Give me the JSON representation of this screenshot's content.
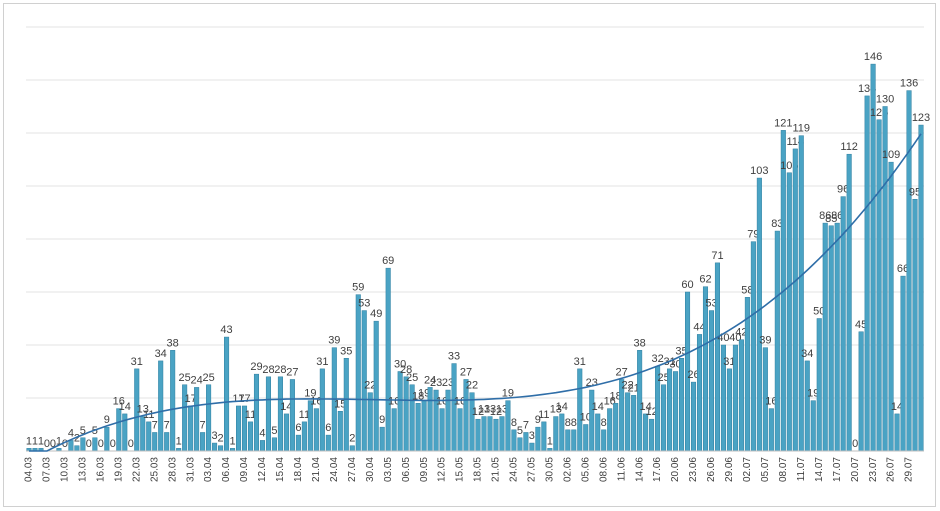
{
  "chart_data": {
    "type": "bar",
    "color": "#4aa3c4",
    "trend_color": "#2f6ea8",
    "grid": true,
    "ylim": [
      0,
      160
    ],
    "yticks": [
      0,
      20,
      40,
      60,
      80,
      100,
      120,
      140,
      160
    ],
    "categories": [
      "04.03",
      null,
      null,
      "07.03",
      null,
      null,
      "10.03",
      null,
      null,
      "13.03",
      null,
      null,
      "16.03",
      null,
      null,
      "19.03",
      null,
      null,
      "22.03",
      null,
      null,
      "25.03",
      null,
      null,
      "28.03",
      null,
      null,
      "31.03",
      null,
      null,
      "03.04",
      null,
      null,
      "06.04",
      null,
      null,
      "09.04",
      null,
      null,
      "12.04",
      null,
      null,
      "15.04",
      null,
      null,
      "18.04",
      null,
      null,
      "21.04",
      null,
      null,
      "24.04",
      null,
      null,
      "27.04",
      null,
      null,
      "30.04",
      null,
      null,
      "03.05",
      null,
      null,
      "06.05",
      null,
      null,
      "09.05",
      null,
      null,
      "12.05",
      null,
      null,
      "15.05",
      null,
      null,
      "18.05",
      null,
      null,
      "21.05",
      null,
      null,
      "24.05",
      null,
      null,
      "27.05",
      null,
      null,
      "30.05",
      null,
      null,
      "02.06",
      null,
      null,
      "05.06",
      null,
      null,
      "08.06",
      null,
      null,
      "11.06",
      null,
      null,
      "14.06",
      null,
      null,
      "17.06",
      null,
      null,
      "20.06",
      null,
      null,
      "23.06",
      null,
      null,
      "26.06",
      null,
      null,
      "29.06",
      null,
      null,
      "02.07",
      null,
      null,
      "05.07",
      null,
      null,
      "08.07",
      null,
      null,
      "11.07",
      null,
      null,
      "14.07",
      null,
      null,
      "17.07",
      null,
      null,
      "20.07",
      null,
      null,
      "23.07",
      null,
      null,
      "26.07",
      null,
      null,
      "29.07",
      null,
      null
    ],
    "values": [
      1,
      1,
      1,
      0,
      0,
      1,
      0,
      4,
      2,
      5,
      0,
      5,
      0,
      9,
      0,
      16,
      14,
      0,
      31,
      13,
      11,
      7,
      34,
      7,
      38,
      1,
      25,
      17,
      24,
      7,
      25,
      3,
      2,
      43,
      1,
      17,
      17,
      11,
      29,
      4,
      28,
      5,
      28,
      14,
      27,
      6,
      11,
      19,
      16,
      31,
      6,
      39,
      15,
      35,
      2,
      59,
      53,
      22,
      49,
      9,
      69,
      16,
      30,
      28,
      25,
      18,
      19,
      24,
      23,
      16,
      23,
      33,
      16,
      27,
      22,
      12,
      13,
      13,
      12,
      13,
      19,
      8,
      5,
      7,
      3,
      9,
      11,
      1,
      13,
      14,
      8,
      8,
      31,
      10,
      23,
      14,
      8,
      16,
      18,
      27,
      22,
      21,
      38,
      14,
      12,
      32,
      25,
      31,
      30,
      35,
      60,
      26,
      44,
      62,
      53,
      71,
      40,
      31,
      40,
      42,
      58,
      79,
      103,
      39,
      16,
      83,
      121,
      105,
      114,
      119,
      34,
      19,
      50,
      86,
      85,
      86,
      96,
      112,
      0,
      45,
      134,
      146,
      125,
      130,
      109,
      14,
      66,
      136,
      95,
      123
    ]
  }
}
